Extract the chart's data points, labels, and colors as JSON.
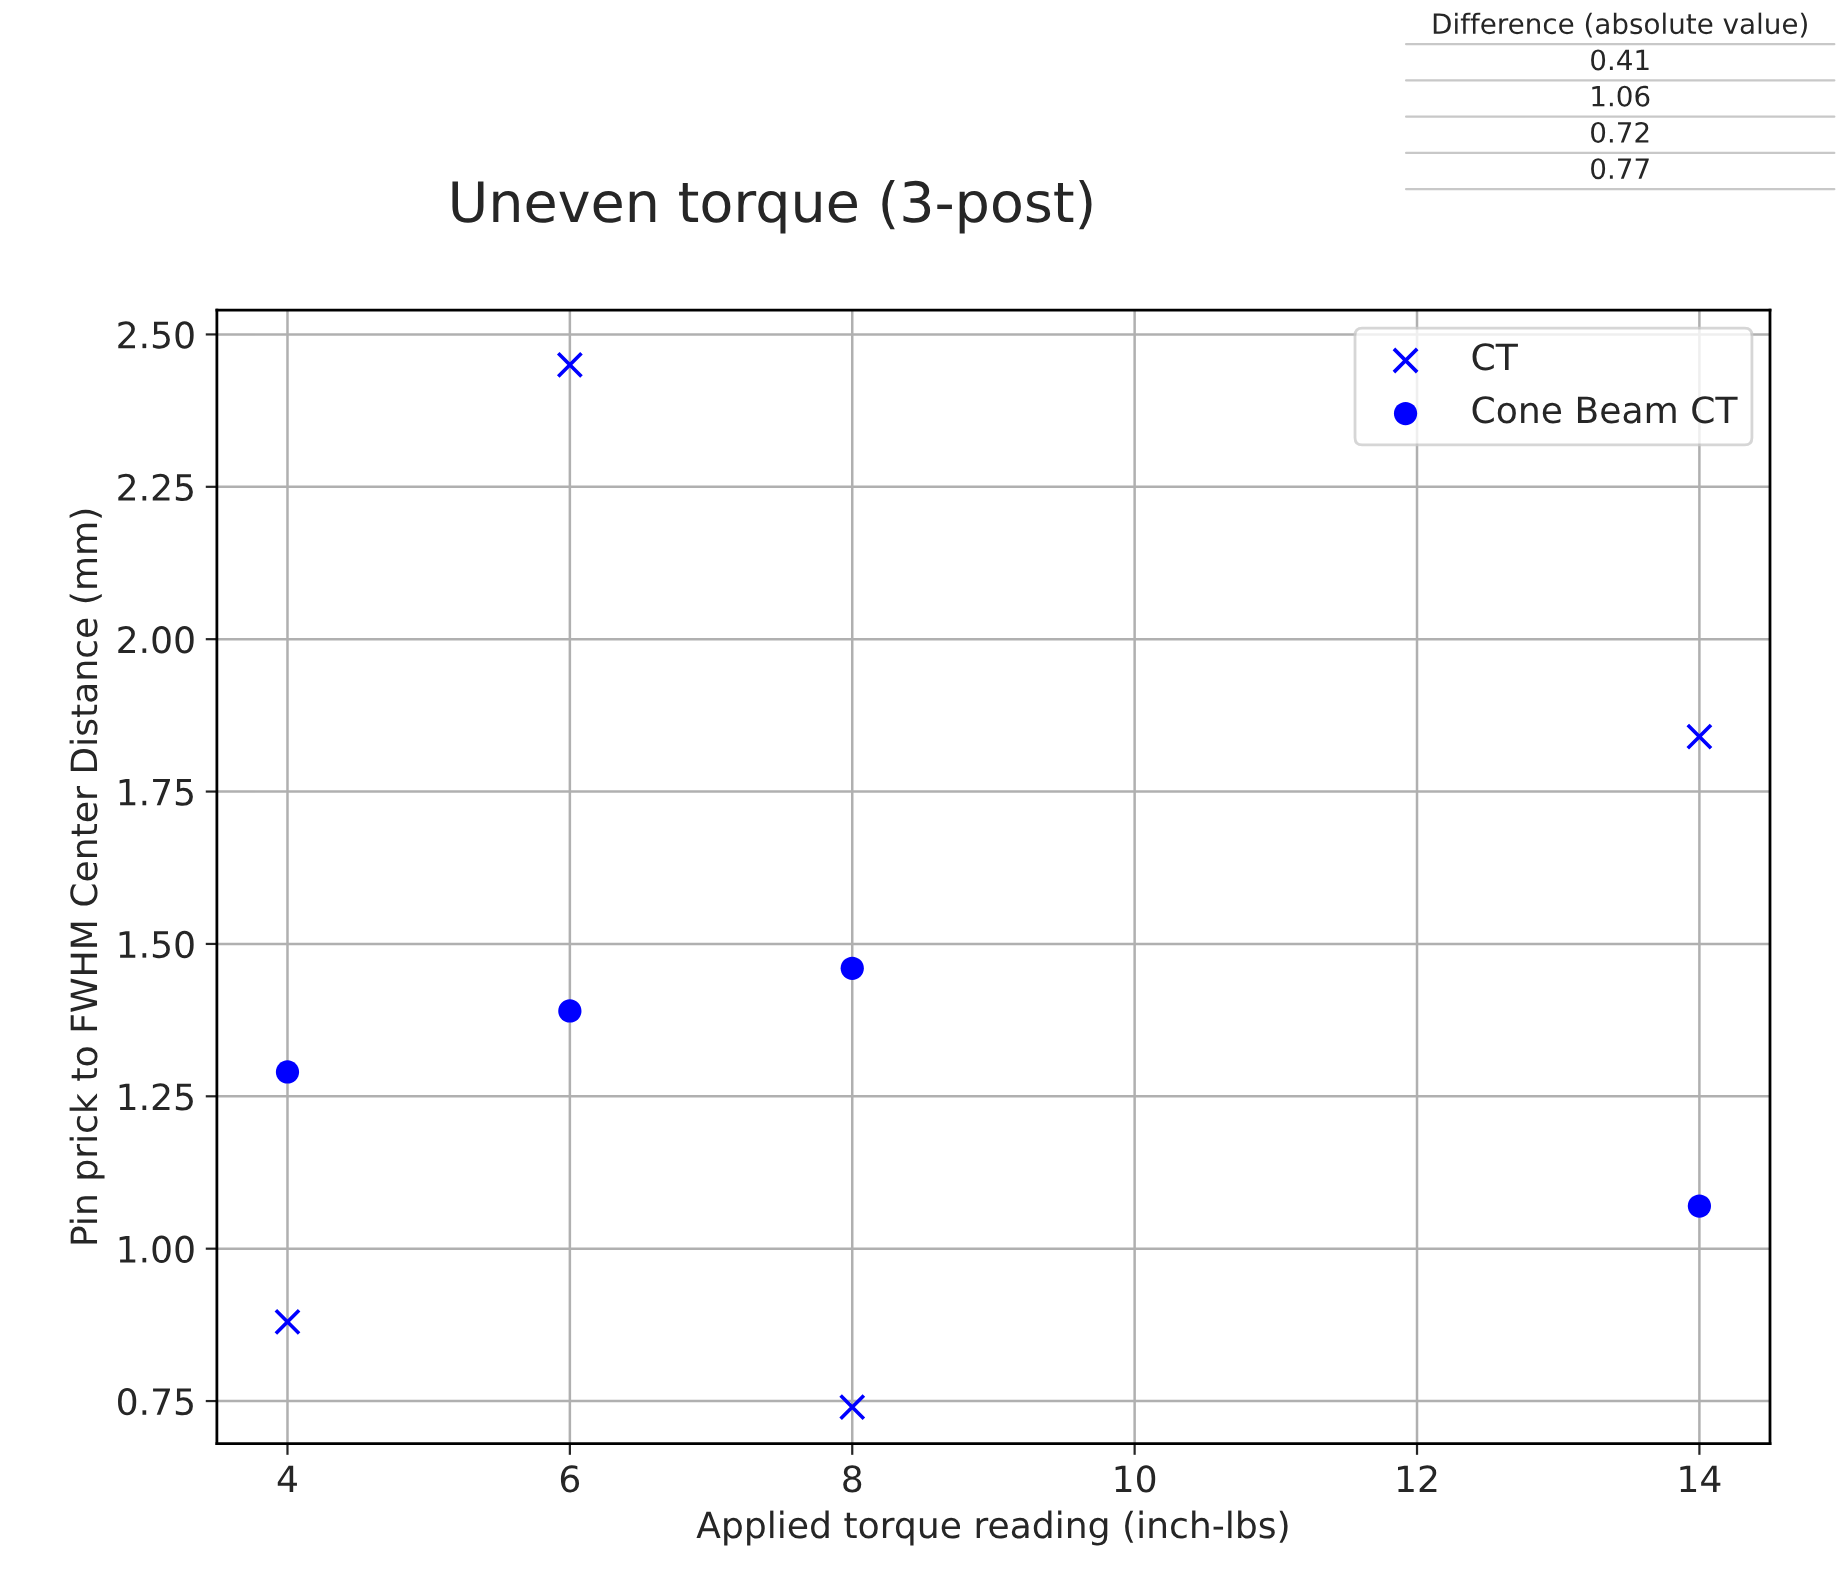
{
  "chart_data": {
    "type": "scatter",
    "title": "Uneven torque (3-post)",
    "xlabel": "Applied torque reading (inch-lbs)",
    "ylabel": "Pin prick to FWHM Center Distance (mm)",
    "x": [
      4,
      6,
      8,
      14
    ],
    "series": [
      {
        "name": "CT",
        "color": "#0000ff",
        "marker": "cross",
        "values": [
          0.88,
          2.45,
          0.74,
          1.84
        ]
      },
      {
        "name": "Cone Beam CT",
        "color": "#0000ff",
        "marker": "circle",
        "values": [
          1.29,
          1.39,
          1.46,
          1.07
        ]
      }
    ],
    "xlim": [
      3.5,
      14.5
    ],
    "ylim": [
      0.68,
      2.54
    ],
    "xticks": [
      4,
      6,
      8,
      10,
      12,
      14
    ],
    "yticks": [
      0.75,
      {
        "value": 1,
        "label": "1.00"
      },
      1.25,
      {
        "value": 1.5,
        "label": "1.50"
      },
      1.75,
      {
        "value": 2,
        "label": "2.00"
      },
      2.25,
      {
        "value": 2.5,
        "label": "2.50"
      }
    ],
    "grid": true,
    "legend": "top right",
    "annotations": [
      "Difference (absolute value)",
      "0.41",
      "1.06",
      "0.72",
      "0.77"
    ]
  }
}
